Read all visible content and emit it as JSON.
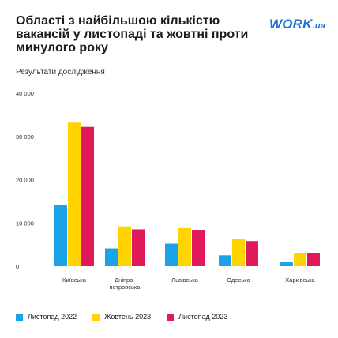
{
  "header": {
    "title": "Області з найбільшою кількістю вакансій у листопаді та жовтні проти минулого року",
    "subtitle": "Результати дослідження",
    "logo_main": "WORK",
    "logo_suffix": ".ua"
  },
  "colors": {
    "blue": "#1aa3e8",
    "yellow": "#ffd400",
    "pink": "#e0195b",
    "brand": "#1a73d9"
  },
  "chart_data": {
    "type": "bar",
    "categories": [
      "Київська",
      "Дніпро-петровська",
      "Львівська",
      "Одеська",
      "Харківська"
    ],
    "category_labels": [
      [
        "Київська"
      ],
      [
        "Дніпро-",
        "петровська"
      ],
      [
        "Львівська"
      ],
      [
        "Одеська"
      ],
      [
        "Харківська"
      ]
    ],
    "series": [
      {
        "name": "Листопад 2022",
        "color": "#1aa3e8",
        "values": [
          14200,
          4100,
          5200,
          2500,
          900
        ]
      },
      {
        "name": "Жовтень 2023",
        "color": "#ffd400",
        "values": [
          33200,
          9200,
          8800,
          6200,
          3000
        ]
      },
      {
        "name": "Листопад 2023",
        "color": "#e0195b",
        "values": [
          32200,
          8500,
          8400,
          5800,
          3100
        ]
      }
    ],
    "ylim": [
      0,
      40000
    ],
    "yticks": [
      0,
      10000,
      20000,
      30000,
      40000
    ],
    "ytick_labels": [
      "0",
      "10 000",
      "20 000",
      "30 000",
      "40 000"
    ],
    "grid": false,
    "legend_position": "bottom-left"
  }
}
